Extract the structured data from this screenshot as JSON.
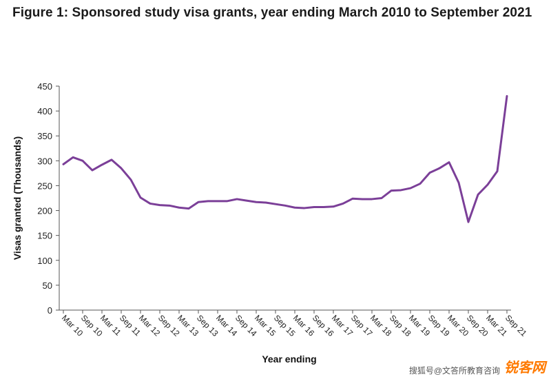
{
  "title": "Figure 1: Sponsored study visa grants, year ending March 2010 to September 2021",
  "watermark": {
    "text": "搜狐号@文答所教育咨询",
    "brand": "锐客网"
  },
  "colors": {
    "line": "#7b3f98",
    "axis": "#555555"
  },
  "chart_data": {
    "type": "line",
    "title": "Figure 1: Sponsored study visa grants, year ending March 2010 to September 2021",
    "xlabel": "Year ending",
    "ylabel": "Visas granted (Thousands)",
    "ylim": [
      0,
      450
    ],
    "yticks": [
      0,
      50,
      100,
      150,
      200,
      250,
      300,
      350,
      400,
      450
    ],
    "grid": false,
    "legend": "none",
    "xtick_labels": [
      "Mar 10",
      "Sep 10",
      "Mar 11",
      "Sep 11",
      "Mar 12",
      "Sep 12",
      "Mar 13",
      "Sep 13",
      "Mar 14",
      "Sep 14",
      "Mar 15",
      "Sep 15",
      "Mar 16",
      "Sep 16",
      "Mar 17",
      "Sep 17",
      "Mar 18",
      "Sep 18",
      "Mar 19",
      "Sep 19",
      "Mar 20",
      "Sep 20",
      "Mar 21",
      "Sep 21"
    ],
    "x": [
      "Mar 10",
      "Jun 10",
      "Sep 10",
      "Dec 10",
      "Mar 11",
      "Jun 11",
      "Sep 11",
      "Dec 11",
      "Mar 12",
      "Jun 12",
      "Sep 12",
      "Dec 12",
      "Mar 13",
      "Jun 13",
      "Sep 13",
      "Dec 13",
      "Mar 14",
      "Jun 14",
      "Sep 14",
      "Dec 14",
      "Mar 15",
      "Jun 15",
      "Sep 15",
      "Dec 15",
      "Mar 16",
      "Jun 16",
      "Sep 16",
      "Dec 16",
      "Mar 17",
      "Jun 17",
      "Sep 17",
      "Dec 17",
      "Mar 18",
      "Jun 18",
      "Sep 18",
      "Dec 18",
      "Mar 19",
      "Jun 19",
      "Sep 19",
      "Dec 19",
      "Mar 20",
      "Jun 20",
      "Sep 20",
      "Dec 20",
      "Mar 21",
      "Jun 21",
      "Sep 21"
    ],
    "series": [
      {
        "values": [
          293,
          307,
          300,
          281,
          292,
          302,
          285,
          262,
          226,
          214,
          211,
          210,
          206,
          204,
          217,
          219,
          219,
          219,
          223,
          220,
          217,
          216,
          213,
          210,
          206,
          205,
          207,
          207,
          208,
          214,
          224,
          223,
          223,
          225,
          240,
          241,
          245,
          254,
          276,
          285,
          297,
          256,
          177,
          232,
          252,
          279,
          430
        ]
      }
    ]
  }
}
